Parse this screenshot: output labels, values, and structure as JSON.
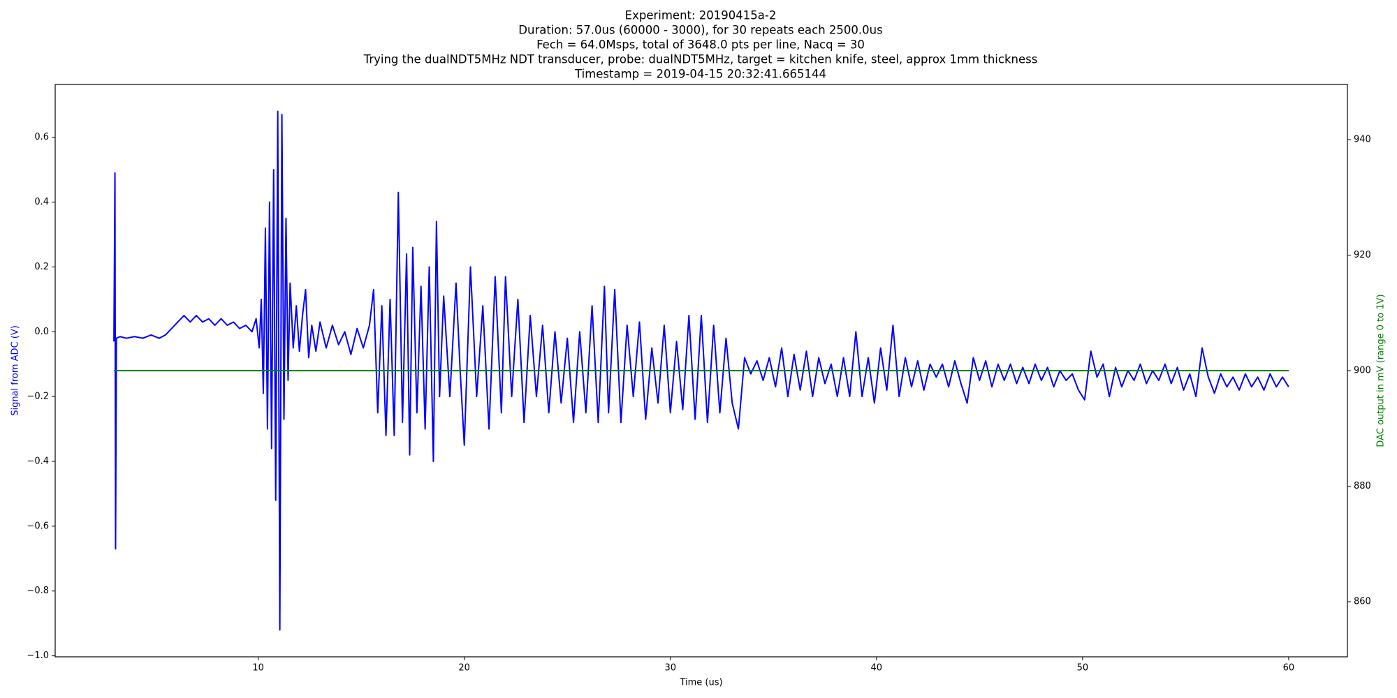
{
  "chart_data": {
    "type": "line",
    "title": [
      "Experiment: 20190415a-2",
      "Duration: 57.0us (60000 - 3000), for 30 repeats each 2500.0us",
      "Fech = 64.0Msps, total of 3648.0 pts per line, Nacq = 30",
      "Trying the dualNDT5MHz NDT transducer, probe: dualNDT5MHz, target = kitchen knife, steel, approx 1mm thickness",
      "Timestamp = 2019-04-15 20:32:41.665144"
    ],
    "xlabel": "Time (us)",
    "ylabel": "Signal from ADC (V)",
    "y2label": "DAC output in mV (range 0 to 1V)",
    "ylabel_color": "#0000ff",
    "y2label_color": "#008000",
    "xlim": [
      0.15,
      62.85
    ],
    "xticks": [
      10,
      20,
      30,
      40,
      50,
      60
    ],
    "ylim": [
      -1.003,
      0.763
    ],
    "yticks": [
      {
        "value": -1.0,
        "label": "−1.0"
      },
      {
        "value": -0.8,
        "label": "−0.8"
      },
      {
        "value": -0.6,
        "label": "−0.6"
      },
      {
        "value": -0.4,
        "label": "−0.4"
      },
      {
        "value": -0.2,
        "label": "−0.2"
      },
      {
        "value": 0,
        "label": "0.0"
      },
      0.2,
      0.4,
      0.6
    ],
    "y2lim": [
      850.45,
      949.55
    ],
    "y2ticks": [
      860,
      880,
      900,
      920,
      940
    ],
    "series": [
      {
        "color": "#0000ff",
        "axis": "y",
        "x": [
          3.0,
          3.05,
          3.08,
          3.12,
          3.3,
          3.6,
          4.0,
          4.4,
          4.8,
          5.2,
          5.5,
          5.8,
          6.1,
          6.4,
          6.7,
          7.0,
          7.3,
          7.6,
          7.9,
          8.2,
          8.5,
          8.8,
          9.1,
          9.4,
          9.7,
          9.9,
          10.05,
          10.15,
          10.25,
          10.35,
          10.45,
          10.55,
          10.65,
          10.75,
          10.85,
          10.95,
          11.05,
          11.15,
          11.25,
          11.35,
          11.45,
          11.55,
          11.7,
          11.85,
          12.0,
          12.15,
          12.3,
          12.45,
          12.6,
          12.8,
          13.0,
          13.3,
          13.6,
          13.9,
          14.2,
          14.5,
          14.8,
          15.1,
          15.4,
          15.6,
          15.8,
          16.0,
          16.2,
          16.4,
          16.6,
          16.8,
          17.0,
          17.2,
          17.35,
          17.5,
          17.7,
          17.9,
          18.1,
          18.3,
          18.5,
          18.65,
          18.8,
          19.0,
          19.3,
          19.6,
          19.8,
          20.0,
          20.3,
          20.6,
          20.9,
          21.2,
          21.5,
          21.8,
          22.0,
          22.3,
          22.6,
          22.9,
          23.2,
          23.5,
          23.8,
          24.1,
          24.4,
          24.7,
          25.0,
          25.3,
          25.6,
          25.9,
          26.2,
          26.5,
          26.8,
          27.0,
          27.3,
          27.6,
          27.9,
          28.2,
          28.5,
          28.8,
          29.1,
          29.4,
          29.7,
          30.0,
          30.3,
          30.6,
          30.9,
          31.2,
          31.5,
          31.8,
          32.1,
          32.4,
          32.7,
          33.0,
          33.3,
          33.6,
          33.9,
          34.2,
          34.5,
          34.8,
          35.1,
          35.4,
          35.7,
          36.0,
          36.3,
          36.6,
          36.9,
          37.2,
          37.5,
          37.8,
          38.1,
          38.4,
          38.7,
          39.0,
          39.3,
          39.6,
          39.9,
          40.2,
          40.5,
          40.8,
          41.1,
          41.4,
          41.7,
          42.0,
          42.3,
          42.6,
          42.9,
          43.2,
          43.5,
          43.8,
          44.1,
          44.4,
          44.7,
          45.0,
          45.3,
          45.6,
          45.9,
          46.2,
          46.5,
          46.8,
          47.1,
          47.4,
          47.7,
          48.0,
          48.3,
          48.6,
          48.9,
          49.2,
          49.5,
          49.8,
          50.1,
          50.4,
          50.7,
          51.0,
          51.3,
          51.6,
          51.9,
          52.2,
          52.5,
          52.8,
          53.1,
          53.4,
          53.7,
          54.0,
          54.3,
          54.6,
          54.9,
          55.2,
          55.5,
          55.8,
          56.1,
          56.4,
          56.7,
          57.0,
          57.3,
          57.6,
          57.9,
          58.2,
          58.5,
          58.8,
          59.1,
          59.4,
          59.7,
          59.9,
          60.0
        ],
        "values": [
          -0.03,
          0.49,
          -0.67,
          -0.02,
          -0.015,
          -0.02,
          -0.015,
          -0.02,
          -0.01,
          -0.02,
          -0.01,
          0.01,
          0.03,
          0.05,
          0.03,
          0.05,
          0.03,
          0.04,
          0.02,
          0.04,
          0.02,
          0.03,
          0.01,
          0.02,
          0.0,
          0.04,
          -0.05,
          0.1,
          -0.19,
          0.32,
          -0.3,
          0.4,
          -0.36,
          0.5,
          -0.52,
          0.68,
          -0.92,
          0.67,
          -0.27,
          0.35,
          -0.15,
          0.15,
          -0.05,
          0.08,
          -0.06,
          0.05,
          0.13,
          -0.08,
          0.02,
          -0.06,
          0.03,
          -0.05,
          0.02,
          -0.04,
          0.0,
          -0.07,
          0.01,
          -0.05,
          0.02,
          0.13,
          -0.25,
          0.08,
          -0.32,
          0.1,
          -0.32,
          0.43,
          -0.28,
          0.24,
          -0.38,
          0.26,
          -0.25,
          0.14,
          -0.3,
          0.2,
          -0.4,
          0.34,
          -0.2,
          0.11,
          -0.2,
          0.15,
          -0.12,
          -0.35,
          0.2,
          -0.2,
          0.08,
          -0.3,
          0.17,
          -0.25,
          0.17,
          -0.2,
          0.1,
          -0.28,
          0.05,
          -0.2,
          0.02,
          -0.25,
          0.0,
          -0.22,
          -0.02,
          -0.28,
          0.0,
          -0.25,
          0.08,
          -0.28,
          0.14,
          -0.25,
          0.13,
          -0.28,
          0.02,
          -0.2,
          0.03,
          -0.27,
          -0.05,
          -0.22,
          0.02,
          -0.25,
          -0.03,
          -0.24,
          0.05,
          -0.27,
          0.05,
          -0.28,
          0.02,
          -0.25,
          -0.02,
          -0.22,
          -0.3,
          -0.08,
          -0.13,
          -0.09,
          -0.15,
          -0.08,
          -0.17,
          -0.05,
          -0.2,
          -0.07,
          -0.18,
          -0.06,
          -0.2,
          -0.08,
          -0.16,
          -0.1,
          -0.2,
          -0.08,
          -0.2,
          0.0,
          -0.2,
          -0.08,
          -0.22,
          -0.05,
          -0.18,
          0.02,
          -0.2,
          -0.08,
          -0.17,
          -0.09,
          -0.18,
          -0.1,
          -0.14,
          -0.1,
          -0.17,
          -0.09,
          -0.16,
          -0.22,
          -0.08,
          -0.15,
          -0.09,
          -0.17,
          -0.1,
          -0.15,
          -0.1,
          -0.16,
          -0.11,
          -0.16,
          -0.1,
          -0.15,
          -0.11,
          -0.17,
          -0.12,
          -0.15,
          -0.13,
          -0.18,
          -0.21,
          -0.06,
          -0.14,
          -0.1,
          -0.2,
          -0.11,
          -0.17,
          -0.12,
          -0.15,
          -0.1,
          -0.16,
          -0.12,
          -0.15,
          -0.1,
          -0.16,
          -0.11,
          -0.18,
          -0.13,
          -0.2,
          -0.05,
          -0.14,
          -0.19,
          -0.13,
          -0.17,
          -0.14,
          -0.18,
          -0.13,
          -0.17,
          -0.14,
          -0.18,
          -0.13,
          -0.17,
          -0.14,
          -0.16,
          -0.17
        ]
      },
      {
        "color": "#008000",
        "axis": "y2",
        "x": [
          3.0,
          60.0
        ],
        "values": [
          900,
          900
        ]
      }
    ]
  }
}
